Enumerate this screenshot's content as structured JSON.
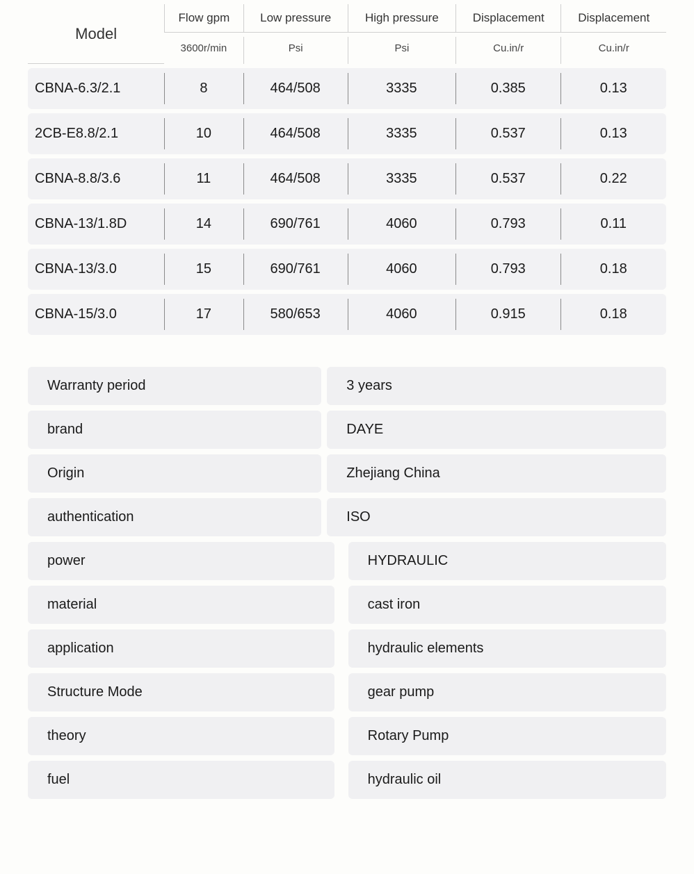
{
  "spec_table": {
    "type": "table",
    "header_top": [
      "Model",
      "Flow gpm",
      "Low pressure",
      "High pressure",
      "Displacement",
      "Displacement"
    ],
    "header_sub": [
      "3600r/min",
      "Psi",
      "Psi",
      "Cu.in/r",
      "Cu.in/r"
    ],
    "rows": [
      [
        "CBNA-6.3/2.1",
        "8",
        "464/508",
        "3335",
        "0.385",
        "0.13"
      ],
      [
        "2CB-E8.8/2.1",
        "10",
        "464/508",
        "3335",
        "0.537",
        "0.13"
      ],
      [
        "CBNA-8.8/3.6",
        "11",
        "464/508",
        "3335",
        "0.537",
        "0.22"
      ],
      [
        "CBNA-13/1.8D",
        "14",
        "690/761",
        "4060",
        "0.793",
        "0.11"
      ],
      [
        "CBNA-13/3.0",
        "15",
        "690/761",
        "4060",
        "0.793",
        "0.18"
      ],
      [
        "CBNA-15/3.0",
        "17",
        "580/653",
        "4060",
        "0.915",
        "0.18"
      ]
    ],
    "colors": {
      "row_bg": "#f2f2f4",
      "border": "#cfcfcf",
      "divider": "#8a8a8a",
      "text": "#1a1a1a"
    },
    "fontsize_header": 17,
    "fontsize_model": 22,
    "fontsize_body": 20
  },
  "attributes": [
    {
      "key": "Warranty period",
      "value": "3 years",
      "indent": false
    },
    {
      "key": "brand",
      "value": "DAYE",
      "indent": false
    },
    {
      "key": "Origin",
      "value": "Zhejiang China",
      "indent": false
    },
    {
      "key": "authentication",
      "value": "ISO",
      "indent": false
    },
    {
      "key": "power",
      "value": "HYDRAULIC",
      "indent": true
    },
    {
      "key": "material",
      "value": "cast iron",
      "indent": true
    },
    {
      "key": "application",
      "value": "hydraulic elements",
      "indent": true
    },
    {
      "key": "Structure Mode",
      "value": "gear pump",
      "indent": true
    },
    {
      "key": "theory",
      "value": "Rotary Pump",
      "indent": true
    },
    {
      "key": "fuel",
      "value": "hydraulic oil",
      "indent": true
    }
  ],
  "attr_style": {
    "bg": "#f0f0f2",
    "radius": 6,
    "fontsize": 20,
    "text": "#1a1a1a"
  }
}
